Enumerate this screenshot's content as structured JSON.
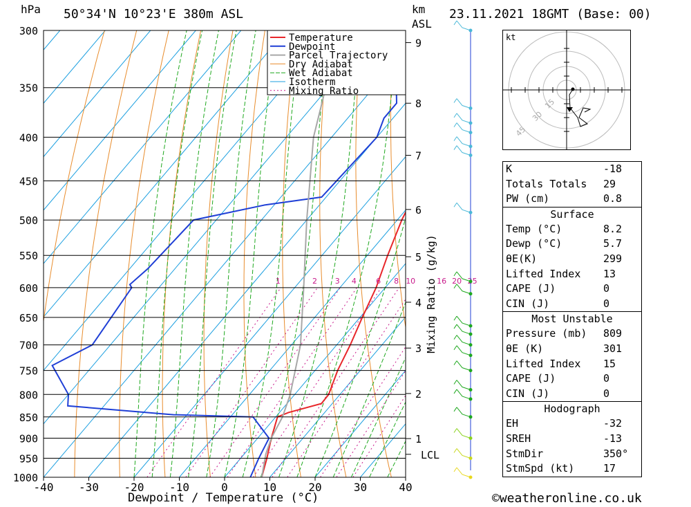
{
  "header": {
    "location": "50°34'N 10°23'E 380m ASL",
    "datetime": "23.11.2021 18GMT (Base: 00)",
    "hpa_label": "hPa",
    "km_label": "km",
    "asl_label": "ASL"
  },
  "footer": {
    "credit": "©weatheronline.co.uk"
  },
  "chart_data": {
    "type": "line",
    "title": "",
    "xlabel": "Dewpoint / Temperature (°C)",
    "ylabel": "hPa",
    "right_ylabel": "Mixing Ratio (g/kg)",
    "xlim": [
      -40,
      40
    ],
    "ylim": [
      1000,
      300
    ],
    "x_ticks": [
      -40,
      -30,
      -20,
      -10,
      0,
      10,
      20,
      30,
      40
    ],
    "pressure_ticks": [
      300,
      350,
      400,
      450,
      500,
      550,
      600,
      650,
      700,
      750,
      800,
      850,
      900,
      950,
      1000
    ],
    "km_ticks": [
      {
        "label": "9",
        "p": 310
      },
      {
        "label": "8",
        "p": 365
      },
      {
        "label": "7",
        "p": 420
      },
      {
        "label": "6",
        "p": 486
      },
      {
        "label": "5",
        "p": 552
      },
      {
        "label": "4",
        "p": 624
      },
      {
        "label": "3",
        "p": 706
      },
      {
        "label": "2",
        "p": 798
      },
      {
        "label": "1",
        "p": 901
      },
      {
        "label": "LCL",
        "p": 940
      }
    ],
    "mixing_ratio_labels": [
      "1",
      "2",
      "3",
      "4",
      "6",
      "8",
      "10",
      "16",
      "20",
      "25"
    ],
    "mixing_ratio_values": [
      1,
      2,
      3,
      4,
      6,
      8,
      10,
      16,
      20,
      25
    ],
    "legend": [
      "Temperature",
      "Dewpoint",
      "Parcel Trajectory",
      "Dry Adiabat",
      "Wet Adiabat",
      "Isotherm",
      "Mixing Ratio"
    ],
    "colors": {
      "temperature": "#e8262a",
      "dewpoint": "#1f3fd6",
      "parcel": "#a8a8a8",
      "dry_adiabat": "#e88c2c",
      "wet_adiabat": "#1ea81e",
      "isotherm": "#1c9fe0",
      "mixing_ratio": "#c8188a"
    },
    "series": [
      {
        "name": "Temperature",
        "points": [
          [
            300,
            -21
          ],
          [
            320,
            -19
          ],
          [
            340,
            -17.5
          ],
          [
            350,
            -16.5
          ],
          [
            370,
            -16
          ],
          [
            400,
            -15
          ],
          [
            450,
            -12
          ],
          [
            500,
            -9
          ],
          [
            550,
            -5.5
          ],
          [
            600,
            -2
          ],
          [
            650,
            0.5
          ],
          [
            700,
            3
          ],
          [
            750,
            5
          ],
          [
            800,
            7.5
          ],
          [
            820,
            7.6
          ],
          [
            840,
            2
          ],
          [
            850,
            0.4
          ],
          [
            900,
            3
          ],
          [
            950,
            5.8
          ],
          [
            1000,
            8.2
          ]
        ]
      },
      {
        "name": "Dewpoint",
        "points": [
          [
            300,
            -40
          ],
          [
            330,
            -34
          ],
          [
            345,
            -36
          ],
          [
            365,
            -32
          ],
          [
            380,
            -32
          ],
          [
            400,
            -30
          ],
          [
            470,
            -31
          ],
          [
            480,
            -42
          ],
          [
            500,
            -55
          ],
          [
            570,
            -56
          ],
          [
            595,
            -57
          ],
          [
            600,
            -56
          ],
          [
            700,
            -54
          ],
          [
            740,
            -59
          ],
          [
            800,
            -50
          ],
          [
            825,
            -48
          ],
          [
            845,
            -23
          ],
          [
            850,
            -5
          ],
          [
            900,
            2.5
          ],
          [
            950,
            4
          ],
          [
            1000,
            5.7
          ]
        ]
      },
      {
        "name": "Parcel Trajectory",
        "points": [
          [
            320,
            -55
          ],
          [
            400,
            -44
          ],
          [
            500,
            -30
          ],
          [
            600,
            -18
          ],
          [
            700,
            -8
          ],
          [
            800,
            -1
          ],
          [
            850,
            1.5
          ],
          [
            900,
            3
          ],
          [
            940,
            4.8
          ],
          [
            1000,
            8.2
          ]
        ]
      }
    ]
  },
  "wind_profile": {
    "pressure_levels": [
      300,
      370,
      385,
      395,
      410,
      420,
      490,
      590,
      610,
      665,
      680,
      700,
      720,
      750,
      790,
      810,
      850,
      900,
      950,
      1000
    ],
    "barb_colors": [
      "#4ab8d8",
      "#4ab8d8",
      "#4ab8d8",
      "#4ab8d8",
      "#4ab8d8",
      "#4ab8d8",
      "#4ab8d8",
      "#1ea81e",
      "#1ea81e",
      "#1ea81e",
      "#1ea81e",
      "#1ea81e",
      "#1ea81e",
      "#1ea81e",
      "#1ea81e",
      "#1ea81e",
      "#1ea81e",
      "#8ad21e",
      "#c8d81e",
      "#e8d81e"
    ]
  },
  "hodograph": {
    "unit_label": "kt",
    "ring_labels": [
      "15",
      "30",
      "45"
    ]
  },
  "stats": {
    "indices": [
      {
        "k": "K",
        "v": "-18"
      },
      {
        "k": "Totals Totals",
        "v": "29"
      },
      {
        "k": "PW (cm)",
        "v": "0.8"
      }
    ],
    "surface_title": "Surface",
    "surface": [
      {
        "k": "Temp (°C)",
        "v": "8.2"
      },
      {
        "k": "Dewp (°C)",
        "v": "5.7"
      },
      {
        "k": "θE(K)",
        "v": "299"
      },
      {
        "k": "Lifted Index",
        "v": "13"
      },
      {
        "k": "CAPE (J)",
        "v": "0"
      },
      {
        "k": "CIN (J)",
        "v": "0"
      }
    ],
    "mu_title": "Most Unstable",
    "most_unstable": [
      {
        "k": "Pressure (mb)",
        "v": "809"
      },
      {
        "k": "θE (K)",
        "v": "301"
      },
      {
        "k": "Lifted Index",
        "v": "15"
      },
      {
        "k": "CAPE (J)",
        "v": "0"
      },
      {
        "k": "CIN (J)",
        "v": "0"
      }
    ],
    "hodo_title": "Hodograph",
    "hodograph": [
      {
        "k": "EH",
        "v": "-32"
      },
      {
        "k": "SREH",
        "v": "-13"
      },
      {
        "k": "StmDir",
        "v": "350°"
      },
      {
        "k": "StmSpd (kt)",
        "v": "17"
      }
    ]
  }
}
